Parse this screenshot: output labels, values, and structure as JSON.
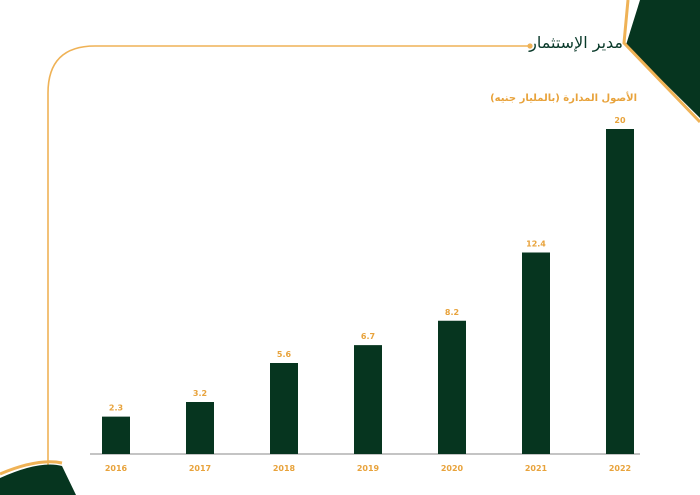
{
  "page": {
    "title": "مدير الإستثمار",
    "colors": {
      "dark_green": "#06351f",
      "accent_orange": "#e8a33c",
      "frame_line": "#efb256"
    },
    "decorations": [
      "corner-top-right",
      "corner-bottom-left",
      "frame-line"
    ]
  },
  "chart_data": {
    "type": "bar",
    "title": "الأصول المدارة (بالمليار جنيه)",
    "categories": [
      "2016",
      "2017",
      "2018",
      "2019",
      "2020",
      "2021",
      "2022"
    ],
    "values": [
      2.3,
      3.2,
      5.6,
      6.7,
      8.2,
      12.4,
      20
    ],
    "value_labels": [
      "2.3",
      "3.2",
      "5.6",
      "6.7",
      "8.2",
      "12.4",
      "20"
    ],
    "xlabel": "",
    "ylabel": "",
    "ylim": [
      0,
      20
    ],
    "grid": false,
    "bar_color": "#06351f",
    "label_color": "#e8a33c"
  }
}
